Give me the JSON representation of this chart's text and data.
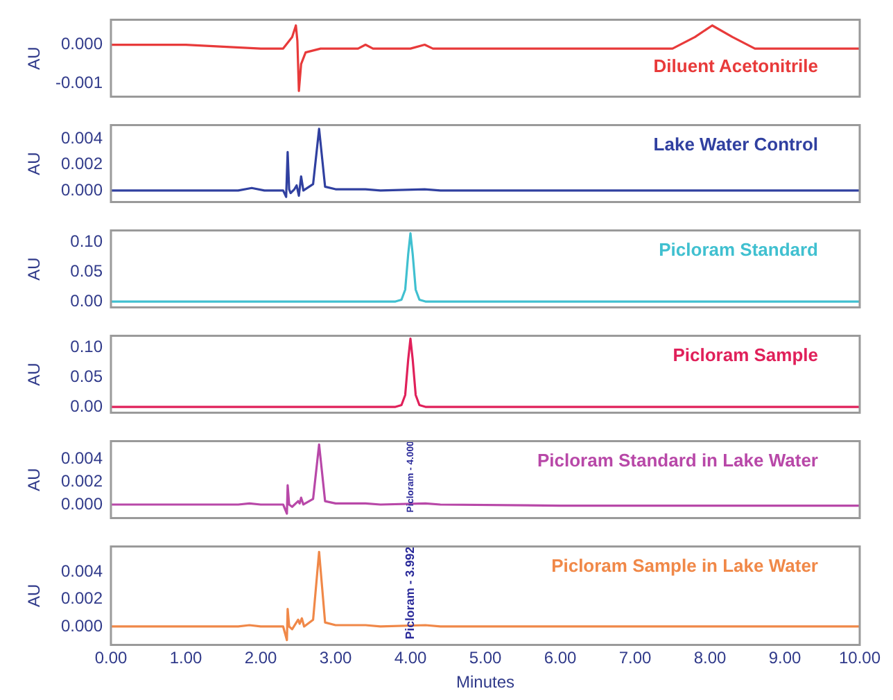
{
  "chart_data": [
    {
      "type": "line",
      "ylabel": "AU",
      "xlim": [
        0,
        10
      ],
      "ylim": [
        -0.00135,
        0.00065
      ],
      "yticks": [
        {
          "value": -0.001,
          "label": "-0.001"
        },
        {
          "value": 0,
          "label": "0.000"
        }
      ],
      "tick_labels": "y",
      "series": [
        {
          "name": "Diluent Acetonitrile",
          "color": "#e83a3a",
          "x": [
            0,
            0.1,
            1,
            2,
            2.3,
            2.42,
            2.47,
            2.49,
            2.51,
            2.54,
            2.6,
            2.8,
            3.3,
            3.4,
            3.5,
            4.0,
            4.19,
            4.3,
            5,
            6,
            7,
            7.5,
            7.8,
            8.03,
            8.3,
            8.6,
            9,
            10
          ],
          "values": [
            0,
            0,
            0,
            -0.0001,
            -0.0001,
            0.0002,
            0.0005,
            0.0001,
            -0.0012,
            -0.0005,
            -0.0002,
            -0.0001,
            -0.0001,
            0,
            -0.0001,
            -0.0001,
            0,
            -0.0001,
            -0.0001,
            -0.0001,
            -0.0001,
            -0.0001,
            0.0002,
            0.0005,
            0.0002,
            -0.0001,
            -0.0001,
            -0.0001
          ]
        }
      ]
    },
    {
      "type": "line",
      "ylabel": "AU",
      "xlim": [
        0,
        10
      ],
      "ylim": [
        -0.0009,
        0.0051
      ],
      "yticks": [
        {
          "value": 0,
          "label": "0.000"
        },
        {
          "value": 0.002,
          "label": "0.002"
        },
        {
          "value": 0.004,
          "label": "0.004"
        }
      ],
      "tick_labels": "y",
      "series": [
        {
          "name": "Lake Water Control",
          "color": "#3040a0",
          "x": [
            0,
            1,
            1.7,
            1.88,
            2.05,
            2.3,
            2.34,
            2.36,
            2.38,
            2.4,
            2.45,
            2.48,
            2.51,
            2.54,
            2.57,
            2.7,
            2.78,
            2.86,
            3.0,
            3.4,
            3.6,
            4.19,
            4.4,
            6,
            8,
            10
          ],
          "values": [
            0,
            0,
            0,
            0.0002,
            0,
            0,
            -0.0005,
            0.003,
            0.0001,
            -0.0002,
            0.0001,
            0.0004,
            -0.0004,
            0.0011,
            0,
            0.0005,
            0.0048,
            0.0003,
            0.0001,
            0.0001,
            0,
            0.0001,
            0,
            0,
            0,
            0
          ]
        }
      ]
    },
    {
      "type": "line",
      "ylabel": "AU",
      "xlim": [
        0,
        10
      ],
      "ylim": [
        -0.01,
        0.12
      ],
      "yticks": [
        {
          "value": 0,
          "label": "0.00"
        },
        {
          "value": 0.05,
          "label": "0.05"
        },
        {
          "value": 0.1,
          "label": "0.10"
        }
      ],
      "tick_labels": "y",
      "series": [
        {
          "name": "Picloram Standard",
          "color": "#40c0d0",
          "x": [
            0,
            3.8,
            3.88,
            3.93,
            3.97,
            4.0,
            4.03,
            4.07,
            4.12,
            4.2,
            10
          ],
          "values": [
            0,
            0,
            0.003,
            0.02,
            0.08,
            0.115,
            0.08,
            0.02,
            0.003,
            0,
            0
          ]
        }
      ]
    },
    {
      "type": "line",
      "ylabel": "AU",
      "xlim": [
        0,
        10
      ],
      "ylim": [
        -0.01,
        0.12
      ],
      "yticks": [
        {
          "value": 0,
          "label": "0.00"
        },
        {
          "value": 0.05,
          "label": "0.05"
        },
        {
          "value": 0.1,
          "label": "0.10"
        }
      ],
      "tick_labels": "y",
      "series": [
        {
          "name": "Picloram Sample",
          "color": "#e0205a",
          "x": [
            0,
            3.8,
            3.88,
            3.93,
            3.97,
            4.0,
            4.03,
            4.07,
            4.12,
            4.2,
            10
          ],
          "values": [
            0,
            0,
            0.003,
            0.02,
            0.08,
            0.115,
            0.08,
            0.02,
            0.003,
            0,
            0
          ]
        }
      ]
    },
    {
      "type": "line",
      "ylabel": "AU",
      "xlim": [
        0,
        10
      ],
      "ylim": [
        -0.0012,
        0.0056
      ],
      "yticks": [
        {
          "value": 0,
          "label": "0.000"
        },
        {
          "value": 0.002,
          "label": "0.002"
        },
        {
          "value": 0.004,
          "label": "0.004"
        }
      ],
      "tick_labels": "y",
      "annotations": [
        "Picloram - 4.000"
      ],
      "series": [
        {
          "name": "Picloram Standard in Lake Water",
          "color": "#b848a8",
          "x": [
            0,
            1,
            1.7,
            1.85,
            2.0,
            2.3,
            2.35,
            2.36,
            2.38,
            2.42,
            2.5,
            2.52,
            2.54,
            2.57,
            2.7,
            2.78,
            2.86,
            3.0,
            3.4,
            3.6,
            4.2,
            4.4,
            6,
            8,
            10
          ],
          "values": [
            0,
            0,
            0,
            0.0001,
            0,
            0,
            -0.0008,
            0.0017,
            0,
            -0.0002,
            0.0003,
            0.0001,
            0.0006,
            0,
            0.0005,
            0.0053,
            0.0003,
            0.0001,
            0.0001,
            0,
            0.0001,
            0,
            -0.0001,
            -0.0001,
            -0.0001
          ]
        }
      ]
    },
    {
      "type": "line",
      "ylabel": "AU",
      "xlabel": "Minutes",
      "xlim": [
        0,
        10
      ],
      "xticks": [
        {
          "value": 0,
          "label": "0.00"
        },
        {
          "value": 1,
          "label": "1.00"
        },
        {
          "value": 2,
          "label": "2.00"
        },
        {
          "value": 3,
          "label": "3.00"
        },
        {
          "value": 4,
          "label": "4.00"
        },
        {
          "value": 5,
          "label": "5.00"
        },
        {
          "value": 6,
          "label": "6.00"
        },
        {
          "value": 7,
          "label": "7.00"
        },
        {
          "value": 8,
          "label": "8.00"
        },
        {
          "value": 9,
          "label": "9.00"
        },
        {
          "value": 10,
          "label": "10.00"
        }
      ],
      "ylim": [
        -0.00135,
        0.0059
      ],
      "yticks": [
        {
          "value": 0,
          "label": "0.000"
        },
        {
          "value": 0.002,
          "label": "0.002"
        },
        {
          "value": 0.004,
          "label": "0.004"
        }
      ],
      "annotations": [
        "Picloram - 3.992"
      ],
      "series": [
        {
          "name": "Picloram Sample in Lake Water",
          "color": "#f08848",
          "x": [
            0,
            1,
            1.7,
            1.85,
            2.0,
            2.3,
            2.35,
            2.36,
            2.38,
            2.42,
            2.5,
            2.52,
            2.55,
            2.58,
            2.7,
            2.78,
            2.86,
            3.0,
            3.4,
            3.6,
            4.2,
            4.4,
            6,
            8,
            10
          ],
          "values": [
            0,
            0,
            0,
            0.0001,
            0,
            0,
            -0.001,
            0.0013,
            0,
            -0.0002,
            0.0005,
            0.0002,
            0.0006,
            0,
            0.0005,
            0.0055,
            0.0003,
            0.0001,
            0.0001,
            0,
            0.0001,
            0,
            0,
            0,
            0
          ]
        }
      ]
    }
  ]
}
